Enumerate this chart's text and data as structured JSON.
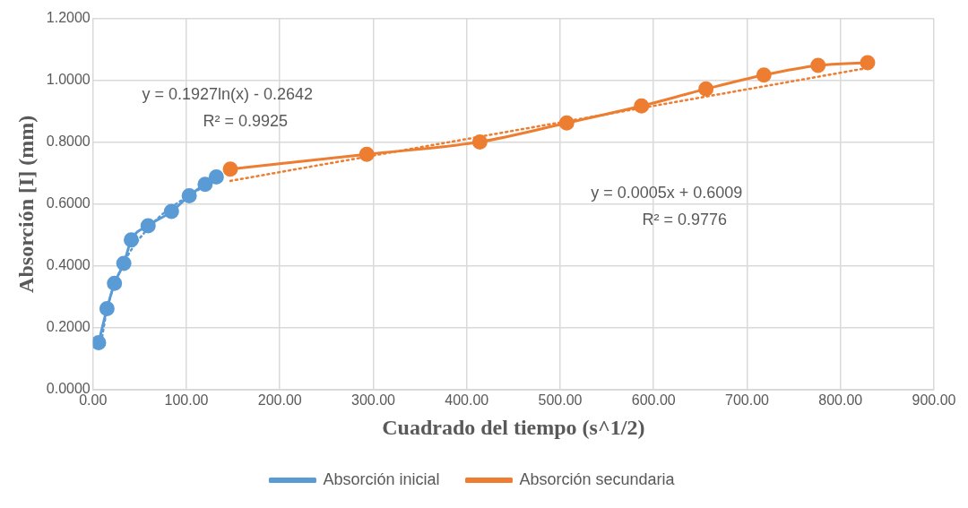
{
  "chart_data": {
    "type": "line",
    "xlabel": "Cuadrado del tiempo (s^1/2)",
    "ylabel": "Absorción [I] (mm)",
    "xlim": [
      0,
      900
    ],
    "xticks": [
      {
        "value": 0,
        "label": "0.00"
      },
      {
        "value": 100,
        "label": "100.00"
      },
      {
        "value": 200,
        "label": "200.00"
      },
      {
        "value": 300,
        "label": "300.00"
      },
      {
        "value": 400,
        "label": "400.00"
      },
      {
        "value": 500,
        "label": "500.00"
      },
      {
        "value": 600,
        "label": "600.00"
      },
      {
        "value": 700,
        "label": "700.00"
      },
      {
        "value": 800,
        "label": "800.00"
      },
      {
        "value": 900,
        "label": "900.00"
      }
    ],
    "ylim": [
      0,
      1.2
    ],
    "yticks": [
      {
        "value": 0,
        "label": "0.0000"
      },
      {
        "value": 0.2,
        "label": "0.2000"
      },
      {
        "value": 0.4,
        "label": "0.4000"
      },
      {
        "value": 0.6,
        "label": "0.6000"
      },
      {
        "value": 0.8,
        "label": "0.8000"
      },
      {
        "value": 1,
        "label": "1.0000"
      },
      {
        "value": 1.2,
        "label": "1.2000"
      }
    ],
    "grid": true,
    "legend": "bottom",
    "marker": "circle",
    "line_style": "solid",
    "series": [
      {
        "name": "Absorción inicial",
        "color": "#5b9bd5",
        "x": [
          6,
          15,
          23,
          33,
          41,
          59,
          84,
          103,
          120,
          132
        ],
        "values": [
          0.152,
          0.262,
          0.344,
          0.408,
          0.484,
          0.53,
          0.576,
          0.627,
          0.664,
          0.688
        ]
      },
      {
        "name": "Absorción secundaria",
        "color": "#ed7d31",
        "x": [
          147,
          293,
          414,
          507,
          587,
          656,
          718,
          776,
          829
        ],
        "values": [
          0.713,
          0.761,
          0.801,
          0.862,
          0.917,
          0.972,
          1.017,
          1.048,
          1.057
        ]
      },
      {
        "type": "line",
        "color": "#5b9bd5",
        "line_style": "dotted",
        "marker": "none",
        "x": [
          8,
          15,
          30,
          60,
          100,
          135
        ],
        "values": [
          0.137,
          0.258,
          0.391,
          0.525,
          0.623,
          0.681
        ]
      },
      {
        "type": "line",
        "color": "#ed7d31",
        "line_style": "dotted",
        "marker": "none",
        "x": [
          147,
          829
        ],
        "values": [
          0.675,
          1.04
        ]
      }
    ],
    "annotations": [
      "y = 0.1927ln(x) - 0.2642\nR² = 0.9925",
      "y = 0.0005x + 0.6009\nR² = 0.9776"
    ]
  }
}
